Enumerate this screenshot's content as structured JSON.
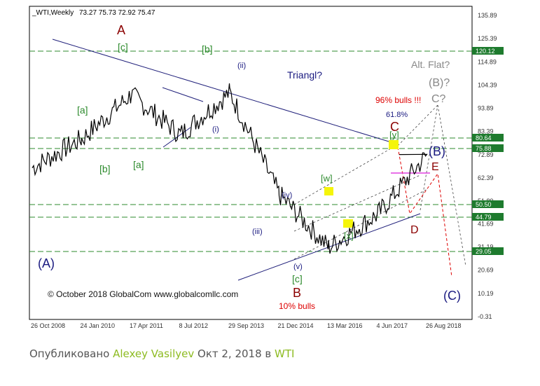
{
  "header": {
    "symbol": "_WTI,Weekly",
    "ohlc": "73.27 75.73 72.92 75.47"
  },
  "colors": {
    "green_label": "#2e8b2e",
    "navy_label": "#1a1a80",
    "dark_red_label": "#8b0000",
    "red_text": "#dd0000",
    "gray_label": "#888888",
    "hline": "#2e8b2e",
    "axis_tag_bg": "#1e7b2e",
    "price": "#000000",
    "trend": "#1f1f7a",
    "highlight": "#f5f50a",
    "magenta_line": "#e040e0"
  },
  "chart_data": {
    "type": "line",
    "title": "_WTI,Weekly",
    "ohlc_readout": "73.27 75.73 72.92 75.47",
    "ylim": [
      -0.31,
      135.89
    ],
    "x_tick_labels": [
      "26 Oct 2008",
      "24 Jan 2010",
      "17 Apr 2011",
      "8 Jul 2012",
      "29 Sep 2013",
      "21 Dec 2014",
      "13 Mar 2016",
      "4 Jun 2017",
      "26 Aug 2018"
    ],
    "y_tick_labels": [
      "135.89",
      "125.39",
      "114.89",
      "104.39",
      "93.89",
      "83.39",
      "72.89",
      "62.39",
      "51.89",
      "41.69",
      "31.19",
      "20.69",
      "10.19",
      "-0.31"
    ],
    "horizontal_levels": [
      "120.12",
      "80.64",
      "75.88",
      "50.50",
      "44.79",
      "29.05"
    ],
    "series": [
      {
        "x": [
          "26 Oct 2008",
          "24 Jan 2010",
          "17 Apr 2011",
          "8 Jul 2012",
          "29 Sep 2013",
          "21 Dec 2014",
          "13 Mar 2016",
          "4 Jun 2017",
          "26 Aug 2018"
        ],
        "values": [
          67,
          80,
          100,
          82,
          101,
          55,
          31,
          46,
          73
        ]
      }
    ],
    "grid": false,
    "legend": "none"
  },
  "annotations": {
    "A": "A",
    "c_top": "[c]",
    "b_top": "[b]",
    "ii": "(ii)",
    "triangl": "Triangl?",
    "alt_flat": "Alt. Flat?",
    "b_q": "(B)?",
    "c_q": "C?",
    "bulls96": "96% bulls !!!",
    "pct618": "61.8%",
    "C": "C",
    "y": "[y]",
    "a_bracket": "[a]",
    "b_bracket": "[b]",
    "a_left": "[a]",
    "i": "(i)",
    "B_paren": "(B)",
    "E": "E",
    "w": "[w]",
    "iv": "(iv)",
    "iii": "(iii)",
    "x": "[x]",
    "D": "D",
    "v": "(v)",
    "c_bottom": "[c]",
    "B": "B",
    "bulls10": "10% bulls",
    "A_paren": "(A)",
    "C_paren": "(C)",
    "copyright": "© October 2018 GlobalCom www.globalcomllc.com"
  },
  "footer": {
    "prefix": "Опубликовано",
    "author": "Alexey Vasilyev",
    "middle": "Окт 2, 2018 в",
    "ticker": "WTI"
  }
}
